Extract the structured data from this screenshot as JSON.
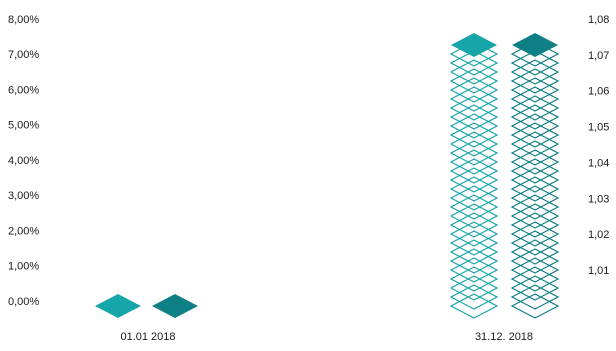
{
  "chart_data": {
    "type": "bar",
    "title": "",
    "xlabel": "",
    "ylabel": "",
    "categories": [
      "01.01 2018",
      "31.12. 2018"
    ],
    "left_axis": {
      "ticks": [
        "8,00%",
        "7,00%",
        "6,00%",
        "5,00%",
        "4,00%",
        "3,00%",
        "2,00%",
        "1,00%",
        "0,00%"
      ],
      "ylim": [
        0,
        8
      ]
    },
    "right_axis": {
      "ticks": [
        "1,08",
        "1,07",
        "1,06",
        "1,05",
        "1,04",
        "1,03",
        "1,02",
        "1,01"
      ],
      "ylim": [
        1.0,
        1.08
      ]
    },
    "series": [
      {
        "values": [
          0,
          7.7
        ],
        "axis": "left",
        "color": "#16a5a8"
      },
      {
        "values": [
          1.0,
          1.077
        ],
        "axis": "right",
        "color": "#0e7f84"
      }
    ],
    "grid": false,
    "legend": "none"
  }
}
